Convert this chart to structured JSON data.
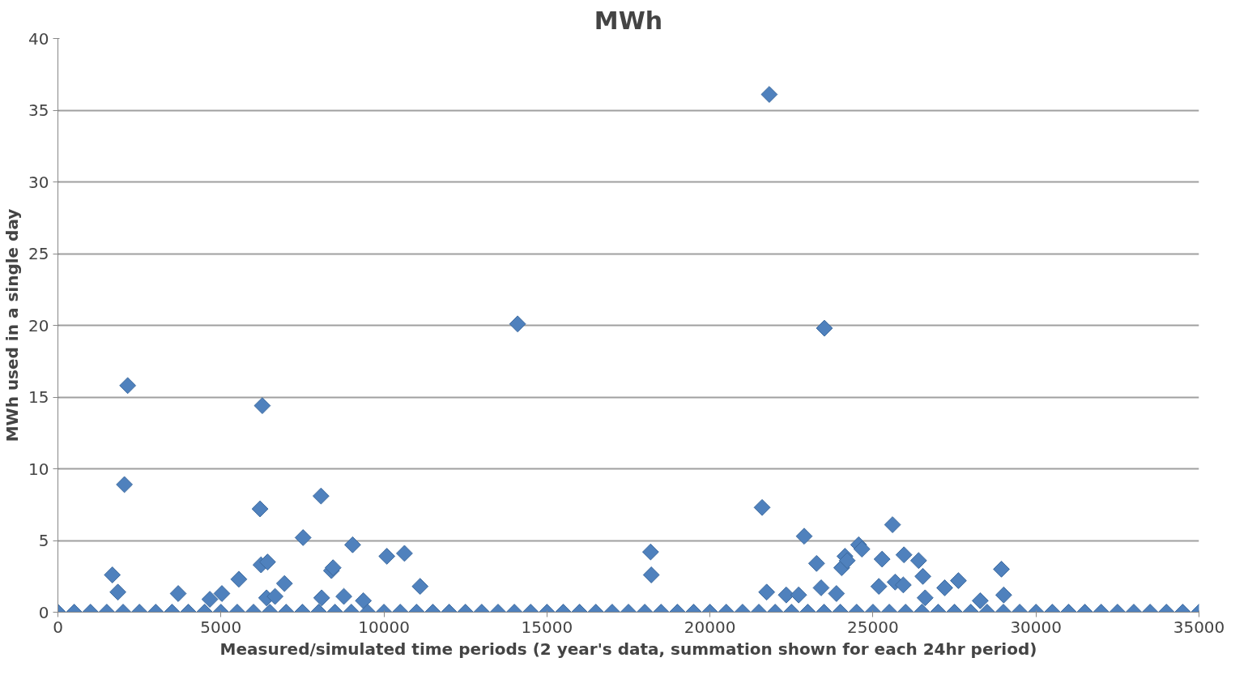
{
  "chart_data": {
    "type": "scatter",
    "title": "MWh",
    "xlabel": "Measured/simulated time periods (2 year's data, summation shown for each 24hr period)",
    "ylabel": "MWh used in a single day",
    "xlim": [
      0,
      35000
    ],
    "xticks": [
      0,
      5000,
      10000,
      15000,
      20000,
      25000,
      30000,
      35000
    ],
    "ylim": [
      0,
      40
    ],
    "yticks": [
      0,
      5,
      10,
      15,
      20,
      25,
      30,
      35,
      40
    ],
    "grid": "y",
    "marker": "diamond",
    "series": [
      {
        "color": "#4f81bd",
        "x": [
          1670,
          1840,
          2040,
          2140,
          3690,
          4660,
          5030,
          5550,
          6200,
          6230,
          6270,
          6400,
          6430,
          6660,
          6950,
          7520,
          8070,
          8090,
          8390,
          8440,
          8770,
          9040,
          9370,
          10090,
          10630,
          11110,
          14100,
          18180,
          18200,
          21600,
          21740,
          21820,
          22340,
          22720,
          22890,
          23270,
          23410,
          23510,
          23880,
          24040,
          24140,
          24210,
          24560,
          24660,
          25180,
          25280,
          25600,
          25680,
          25930,
          25950,
          26400,
          26530,
          26600,
          27200,
          27620,
          28290,
          28940,
          29010
        ],
        "values": [
          2.6,
          1.4,
          8.9,
          15.8,
          1.3,
          0.9,
          1.3,
          2.3,
          7.2,
          3.3,
          14.4,
          1.0,
          3.5,
          1.1,
          2.0,
          5.2,
          8.1,
          1.0,
          2.9,
          3.1,
          1.1,
          4.7,
          0.8,
          3.9,
          4.1,
          1.8,
          20.1,
          4.2,
          2.6,
          7.3,
          1.4,
          36.1,
          1.2,
          1.2,
          5.3,
          3.4,
          1.7,
          19.8,
          1.3,
          3.1,
          3.9,
          3.6,
          4.7,
          4.4,
          1.8,
          3.7,
          6.1,
          2.1,
          1.9,
          4.0,
          3.6,
          2.5,
          1.0,
          1.7,
          2.2,
          0.8,
          3.0,
          1.2
        ]
      },
      {
        "color": "#4f81bd",
        "x": [
          0,
          500,
          1000,
          1500,
          2000,
          2500,
          3000,
          3500,
          4000,
          4500,
          5000,
          5500,
          6000,
          6500,
          7000,
          7500,
          8000,
          8500,
          9000,
          9500,
          10000,
          10500,
          11000,
          11500,
          12000,
          12500,
          13000,
          13500,
          14000,
          14500,
          15000,
          15500,
          16000,
          16500,
          17000,
          17500,
          18000,
          18500,
          19000,
          19500,
          20000,
          20500,
          21000,
          21500,
          22000,
          22500,
          23000,
          23500,
          24000,
          24500,
          25000,
          25500,
          26000,
          26500,
          27000,
          27500,
          28000,
          28500,
          29000,
          29500,
          30000,
          30500,
          31000,
          31500,
          32000,
          32500,
          33000,
          33500,
          34000,
          34500,
          35000
        ],
        "values": [
          0,
          0,
          0,
          0,
          0,
          0,
          0,
          0,
          0,
          0,
          0,
          0,
          0,
          0,
          0,
          0,
          0,
          0,
          0,
          0,
          0,
          0,
          0,
          0,
          0,
          0,
          0,
          0,
          0,
          0,
          0,
          0,
          0,
          0,
          0,
          0,
          0,
          0,
          0,
          0,
          0,
          0,
          0,
          0,
          0,
          0,
          0,
          0,
          0,
          0,
          0,
          0,
          0,
          0,
          0,
          0,
          0,
          0,
          0,
          0,
          0,
          0,
          0,
          0,
          0,
          0,
          0,
          0,
          0,
          0,
          0
        ]
      }
    ]
  }
}
